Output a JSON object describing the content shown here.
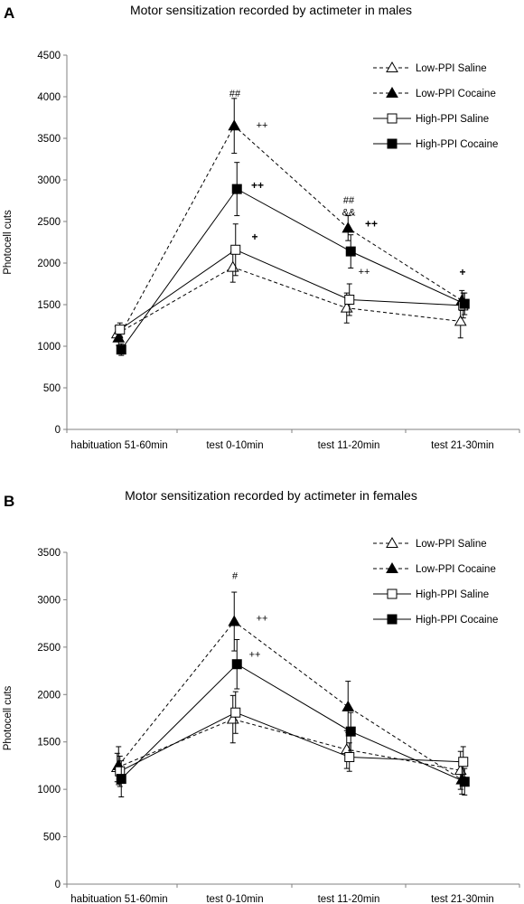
{
  "chart_data": [
    {
      "type": "line",
      "panel": "A",
      "title": "Motor sensitization recorded by actimeter in males",
      "xlabel": "",
      "ylabel": "Photocell cuts",
      "ylim": [
        0,
        4500
      ],
      "ytick_step": 500,
      "categories": [
        "habituation 51-60min",
        "test 0-10min",
        "test 11-20min",
        "test 21-30min"
      ],
      "legend_placement": "top-right",
      "series": [
        {
          "name": "Low-PPI Saline",
          "marker": "open-triangle",
          "dash": true,
          "values": [
            1150,
            1950,
            1460,
            1300
          ],
          "errors": [
            90,
            180,
            180,
            200
          ]
        },
        {
          "name": "Low-PPI Cocaine",
          "marker": "filled-triangle",
          "dash": true,
          "values": [
            1100,
            3650,
            2420,
            1550
          ],
          "errors": [
            90,
            330,
            150,
            120
          ]
        },
        {
          "name": "High-PPI Saline",
          "marker": "open-square",
          "dash": false,
          "values": [
            1200,
            2160,
            1560,
            1490
          ],
          "errors": [
            80,
            310,
            190,
            150
          ]
        },
        {
          "name": "High-PPI Cocaine",
          "marker": "filled-square",
          "dash": false,
          "values": [
            960,
            2890,
            2140,
            1510
          ],
          "errors": [
            70,
            320,
            200,
            130
          ]
        }
      ],
      "annotations": [
        {
          "text": "##",
          "cat": 1,
          "y": 4000,
          "dx": 0,
          "bold": false
        },
        {
          "text": "++",
          "cat": 1,
          "y": 3620,
          "dx": 30,
          "bold": false
        },
        {
          "text": "++",
          "cat": 1,
          "y": 2890,
          "dx": 25,
          "bold": true
        },
        {
          "text": "+",
          "cat": 1,
          "y": 2270,
          "dx": 22,
          "bold": true
        },
        {
          "text": "##",
          "cat": 2,
          "y": 2720,
          "dx": 0,
          "bold": false
        },
        {
          "text": "&&",
          "cat": 2,
          "y": 2570,
          "dx": 0,
          "bold": false
        },
        {
          "text": "++",
          "cat": 2,
          "y": 2430,
          "dx": 25,
          "bold": true
        },
        {
          "text": "++",
          "cat": 2,
          "y": 1860,
          "dx": 17,
          "bold": false
        },
        {
          "text": "+",
          "cat": 3,
          "y": 1850,
          "dx": 0,
          "bold": true
        }
      ]
    },
    {
      "type": "line",
      "panel": "B",
      "title": "Motor sensitization recorded by actimeter in females",
      "xlabel": "",
      "ylabel": "Photocell cuts",
      "ylim": [
        0,
        3500
      ],
      "ytick_step": 500,
      "categories": [
        "habituation 51-60min",
        "test 0-10min",
        "test 11-20min",
        "test 21-30min"
      ],
      "legend_placement": "top-right",
      "series": [
        {
          "name": "Low-PPI Saline",
          "marker": "open-triangle",
          "dash": true,
          "values": [
            1230,
            1740,
            1420,
            1200
          ],
          "errors": [
            150,
            250,
            200,
            200
          ]
        },
        {
          "name": "Low-PPI Cocaine",
          "marker": "filled-triangle",
          "dash": true,
          "values": [
            1250,
            2770,
            1870,
            1100
          ],
          "errors": [
            200,
            310,
            270,
            150
          ]
        },
        {
          "name": "High-PPI Saline",
          "marker": "open-square",
          "dash": false,
          "values": [
            1190,
            1810,
            1340,
            1290
          ],
          "errors": [
            160,
            220,
            150,
            160
          ]
        },
        {
          "name": "High-PPI Cocaine",
          "marker": "filled-square",
          "dash": false,
          "values": [
            1110,
            2320,
            1610,
            1080
          ],
          "errors": [
            190,
            260,
            200,
            140
          ]
        }
      ],
      "annotations": [
        {
          "text": "#",
          "cat": 1,
          "y": 3220,
          "dx": 0,
          "bold": false
        },
        {
          "text": "++",
          "cat": 1,
          "y": 2770,
          "dx": 30,
          "bold": false
        },
        {
          "text": "++",
          "cat": 1,
          "y": 2390,
          "dx": 22,
          "bold": false
        }
      ]
    }
  ]
}
